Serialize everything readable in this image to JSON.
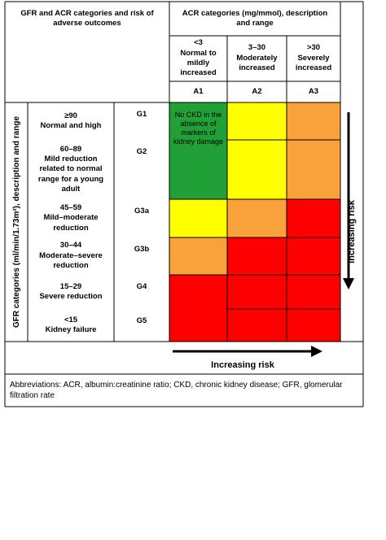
{
  "header": {
    "left_title": "GFR and ACR categories and risk of adverse outcomes",
    "right_title": "ACR categories (mg/mmol), description and range"
  },
  "columns": [
    {
      "range": "<3",
      "description": "Normal to mildly increased",
      "code": "A1"
    },
    {
      "range": "3–30",
      "description": "Moderately increased",
      "code": "A2"
    },
    {
      "range": ">30",
      "description": "Severely increased",
      "code": "A3"
    }
  ],
  "side_label": "GFR categories (ml/min/1.73m²), description and range",
  "rows": [
    {
      "range": "≥90",
      "description": "Normal and high",
      "code": "G1",
      "colors": [
        "#21a038",
        "#ffff00",
        "#f9a13a"
      ]
    },
    {
      "range": "60–89",
      "description": "Mild reduction related to normal range for a young adult",
      "code": "G2",
      "colors": [
        "#21a038",
        "#ffff00",
        "#f9a13a"
      ]
    },
    {
      "range": "45–59",
      "description": "Mild–moderate reduction",
      "code": "G3a",
      "colors": [
        "#ffff00",
        "#f9a13a",
        "#ff0000"
      ]
    },
    {
      "range": "30–44",
      "description": "Moderate–severe reduction",
      "code": "G3b",
      "colors": [
        "#f9a13a",
        "#ff0000",
        "#ff0000"
      ]
    },
    {
      "range": "15–29",
      "description": "Severe reduction",
      "code": "G4",
      "colors": [
        "#ff0000",
        "#ff0000",
        "#ff0000"
      ]
    },
    {
      "range": "<15",
      "description": "Kidney failure",
      "code": "G5",
      "colors": [
        "#ff0000",
        "#ff0000",
        "#ff0000"
      ]
    }
  ],
  "green_note": "No CKD in the absence of markers of kidney damage",
  "risk_vertical": "Increasing risk",
  "risk_horizontal": "Increasing risk",
  "abbreviations": "Abbreviations: ACR, albumin:creatinine ratio; CKD, chronic kidney disease; GFR, glomerular filtration rate"
}
